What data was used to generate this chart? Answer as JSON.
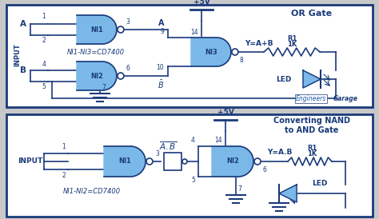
{
  "bg_outer": "#c8c8c8",
  "bg_panel": "#ffffff",
  "border_color": "#1a3a7a",
  "line_color": "#1a3a7a",
  "gate_fill": "#7ab8e8",
  "gate_edge": "#1a3a7a",
  "text_color": "#1a3a7a",
  "title1": "OR Gate",
  "title2": "Converting NAND\nto AND Gate",
  "label1": "NI1-NI3=CD7400",
  "label2": "NI1-NI2=CD7400",
  "watermark_e": "Engineers",
  "watermark_g": "Garage"
}
